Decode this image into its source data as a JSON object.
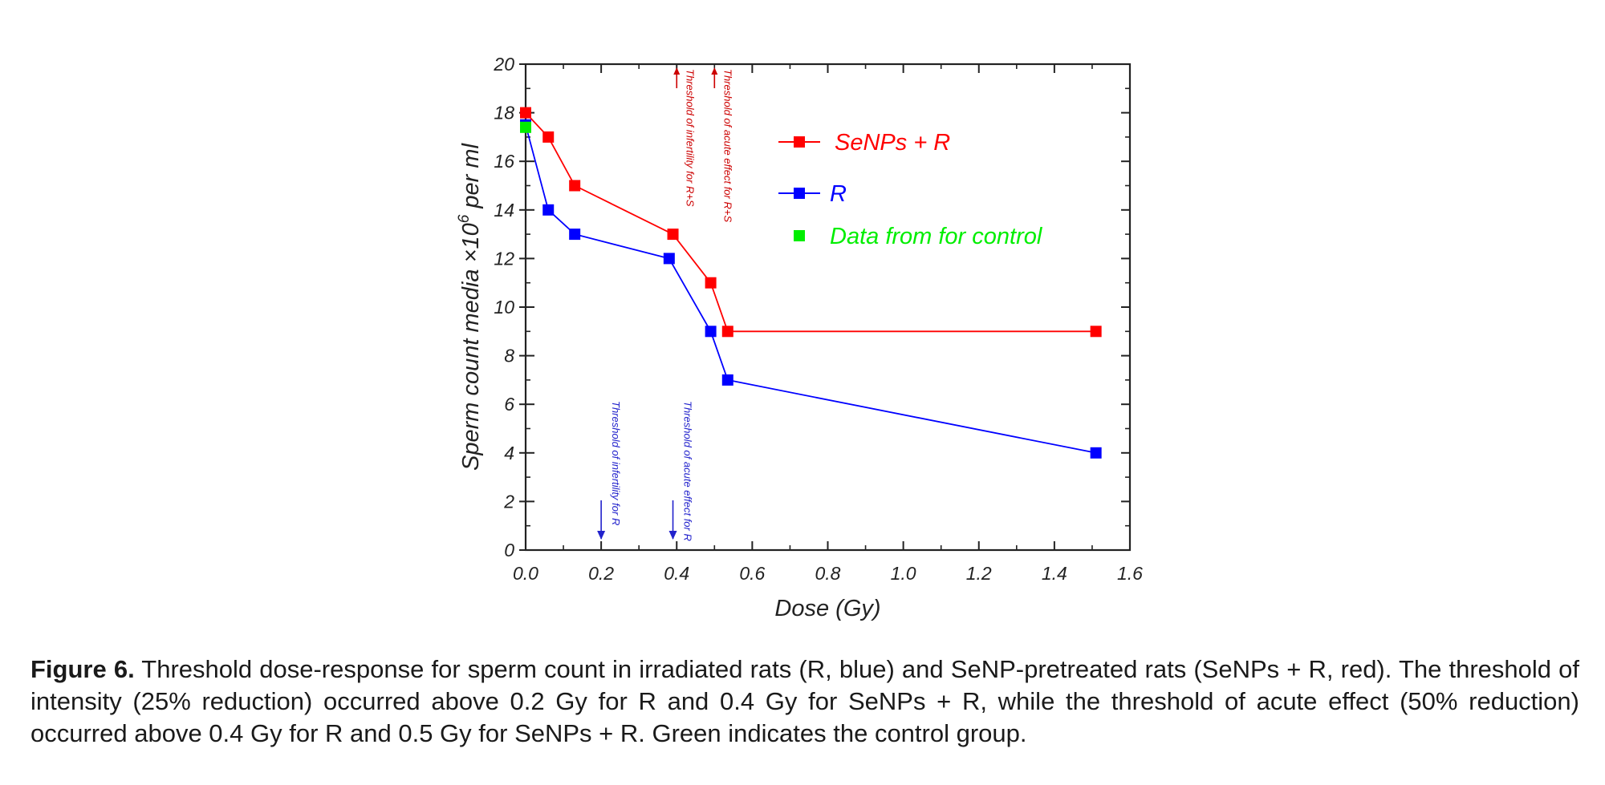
{
  "chart_data": {
    "type": "line",
    "xlabel": "Dose (Gy)",
    "ylabel": "Sperm count media ×10",
    "ylabel_sup": "6",
    "ylabel_suffix": " per ml",
    "xlim": [
      0.0,
      1.6
    ],
    "ylim": [
      0,
      20
    ],
    "xticks": [
      0.0,
      0.2,
      0.4,
      0.6,
      0.8,
      1.0,
      1.2,
      1.4,
      1.6
    ],
    "xtick_labels": [
      "0.0",
      "0.2",
      "0.4",
      "0.6",
      "0.8",
      "1.0",
      "1.2",
      "1.4",
      "1.6"
    ],
    "yticks": [
      0,
      2,
      4,
      6,
      8,
      10,
      12,
      14,
      16,
      18,
      20
    ],
    "ytick_labels": [
      "0",
      "2",
      "4",
      "6",
      "8",
      "10",
      "12",
      "14",
      "16",
      "18",
      "20"
    ],
    "legend_position": "top-right",
    "series": [
      {
        "name": "SeNPs + R",
        "color": "#ff0000",
        "points": [
          [
            0.0,
            18
          ],
          [
            0.06,
            17
          ],
          [
            0.13,
            15
          ],
          [
            0.39,
            13
          ],
          [
            0.49,
            11
          ],
          [
            0.535,
            9
          ],
          [
            1.51,
            9
          ]
        ]
      },
      {
        "name": "R",
        "color": "#0000ff",
        "points": [
          [
            0.0,
            17.5
          ],
          [
            0.06,
            14
          ],
          [
            0.13,
            13
          ],
          [
            0.38,
            12
          ],
          [
            0.49,
            9
          ],
          [
            0.535,
            7
          ],
          [
            1.51,
            4
          ]
        ]
      },
      {
        "name": "Data from    for control",
        "color": "#00ee00",
        "points": [
          [
            0.0,
            17.4
          ]
        ],
        "markers_only": true
      }
    ],
    "annotations": [
      {
        "text": "Threshold of infertility for  R+S",
        "color": "#cc0000",
        "x": 0.4,
        "direction": "up"
      },
      {
        "text": "Threshold of acute effect for R+S",
        "color": "#cc0000",
        "x": 0.5,
        "direction": "up"
      },
      {
        "text": "Threshold of infertility for  R",
        "color": "#2222cc",
        "x": 0.2,
        "direction": "down"
      },
      {
        "text": "Threshold of acute effect for R",
        "color": "#2222cc",
        "x": 0.39,
        "direction": "down"
      }
    ]
  },
  "caption": {
    "label": "Figure 6.",
    "text": " Threshold dose-response for sperm count in irradiated rats (R, blue) and SeNP-pretreated rats (SeNPs + R, red). The threshold of intensity (25% reduction) occurred above 0.2 Gy for R and 0.4 Gy for SeNPs + R, while the threshold of acute effect (50% reduction) occurred above 0.4 Gy for R and 0.5 Gy for SeNPs + R. Green indicates the control group."
  }
}
